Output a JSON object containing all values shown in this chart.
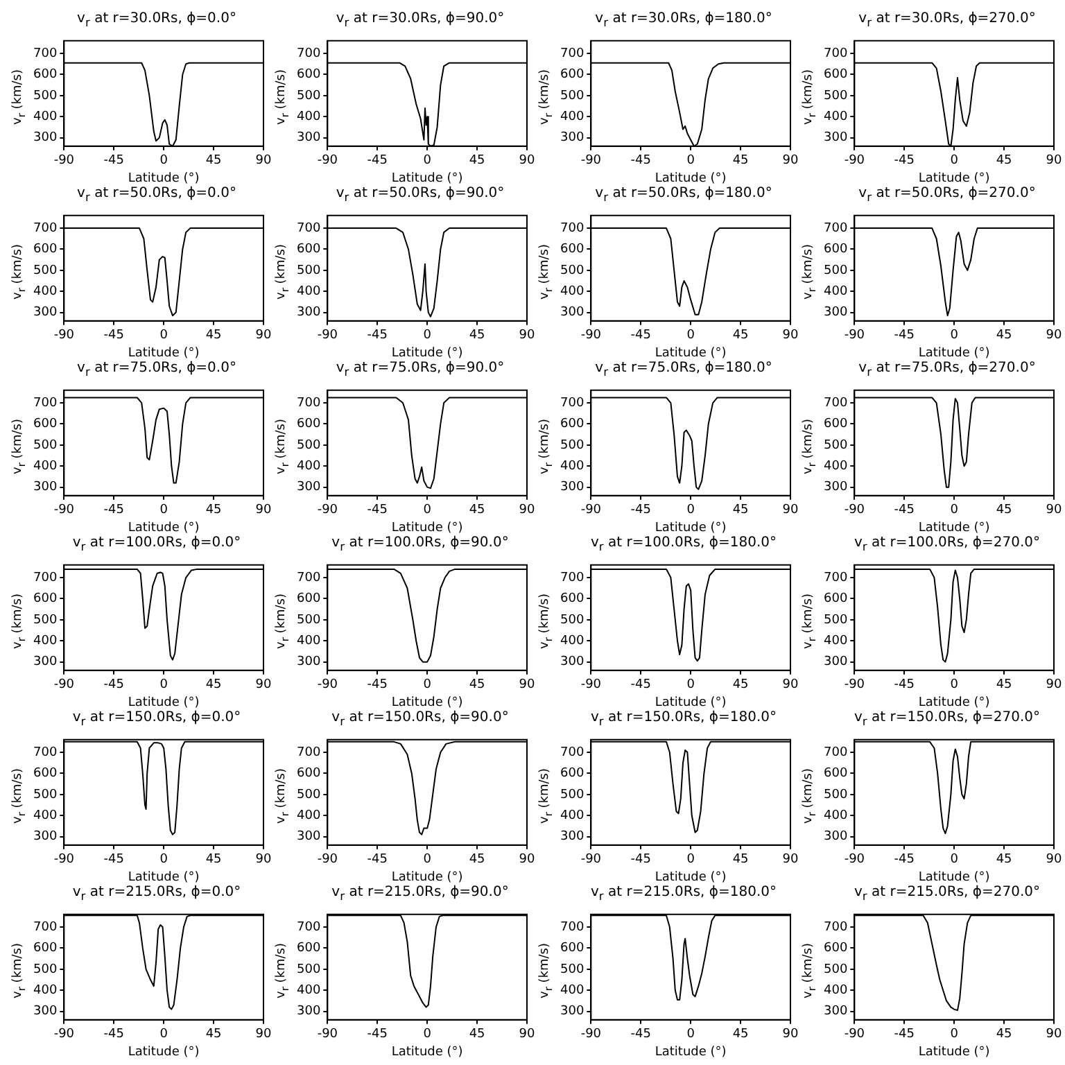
{
  "chart_data": [
    {
      "type": "line",
      "title": "v$_{r}$ at r=30.0Rs, ϕ=0.0°",
      "xlabel": "Latitude (°)",
      "ylabel": "v$_{r}$ (km/s)",
      "xlim": [
        -90,
        90
      ],
      "xticks": [
        -90,
        -45,
        0,
        45,
        90
      ],
      "ylim": [
        260,
        760
      ],
      "yticks": [
        300,
        400,
        500,
        600,
        700
      ],
      "x": [
        -90,
        -20,
        -17,
        -13,
        -9,
        -7,
        -4,
        -1,
        1,
        3,
        5,
        8,
        11,
        14,
        17,
        20,
        23,
        90
      ],
      "series": [
        {
          "color": "#000000",
          "values": [
            655,
            655,
            620,
            500,
            330,
            285,
            300,
            370,
            385,
            360,
            270,
            260,
            290,
            450,
            600,
            650,
            655,
            655
          ]
        }
      ]
    },
    {
      "type": "line",
      "title": "v$_{r}$ at r=30.0Rs, ϕ=90.0°",
      "xlabel": "Latitude (°)",
      "ylabel": "v$_{r}$ (km/s)",
      "xlim": [
        -90,
        90
      ],
      "xticks": [
        -90,
        -45,
        0,
        45,
        90
      ],
      "ylim": [
        260,
        760
      ],
      "yticks": [
        300,
        400,
        500,
        600,
        700
      ],
      "x": [
        -90,
        -25,
        -20,
        -15,
        -10,
        -6,
        -3,
        -2,
        -1,
        0,
        1,
        3,
        6,
        9,
        12,
        15,
        20,
        90
      ],
      "series": [
        {
          "color": "#000000",
          "values": [
            655,
            655,
            640,
            580,
            460,
            390,
            290,
            440,
            360,
            400,
            270,
            260,
            265,
            350,
            550,
            640,
            655,
            655
          ]
        }
      ]
    },
    {
      "type": "line",
      "title": "v$_{r}$ at r=30.0Rs, ϕ=180.0°",
      "xlabel": "Latitude (°)",
      "ylabel": "v$_{r}$ (km/s)",
      "xlim": [
        -90,
        90
      ],
      "xticks": [
        -90,
        -45,
        0,
        45,
        90
      ],
      "ylim": [
        260,
        760
      ],
      "yticks": [
        300,
        400,
        500,
        600,
        700
      ],
      "x": [
        -90,
        -20,
        -17,
        -14,
        -10,
        -7,
        -5,
        -3,
        0,
        3,
        6,
        10,
        13,
        16,
        20,
        25,
        30,
        90
      ],
      "series": [
        {
          "color": "#000000",
          "values": [
            655,
            655,
            620,
            520,
            420,
            340,
            355,
            320,
            290,
            260,
            270,
            340,
            480,
            580,
            630,
            650,
            655,
            655
          ]
        }
      ]
    },
    {
      "type": "line",
      "title": "v$_{r}$ at r=30.0Rs, ϕ=270.0°",
      "xlabel": "Latitude (°)",
      "ylabel": "v$_{r}$ (km/s)",
      "xlim": [
        -90,
        90
      ],
      "xticks": [
        -90,
        -45,
        0,
        45,
        90
      ],
      "ylim": [
        260,
        760
      ],
      "yticks": [
        300,
        400,
        500,
        600,
        700
      ],
      "x": [
        -90,
        -20,
        -16,
        -12,
        -8,
        -5,
        -3,
        -1,
        1,
        3,
        5,
        8,
        11,
        14,
        17,
        20,
        23,
        90
      ],
      "series": [
        {
          "color": "#000000",
          "values": [
            655,
            655,
            630,
            520,
            380,
            270,
            260,
            340,
            480,
            585,
            480,
            380,
            355,
            420,
            560,
            640,
            655,
            655
          ]
        }
      ]
    },
    {
      "type": "line",
      "title": "v$_{r}$ at r=50.0Rs, ϕ=0.0°",
      "xlabel": "Latitude (°)",
      "ylabel": "v$_{r}$ (km/s)",
      "xlim": [
        -90,
        90
      ],
      "xticks": [
        -90,
        -45,
        0,
        45,
        90
      ],
      "ylim": [
        260,
        760
      ],
      "yticks": [
        300,
        400,
        500,
        600,
        700
      ],
      "x": [
        -90,
        -22,
        -18,
        -15,
        -12,
        -10,
        -7,
        -4,
        -1,
        1,
        3,
        5,
        8,
        11,
        14,
        17,
        20,
        24,
        90
      ],
      "series": [
        {
          "color": "#000000",
          "values": [
            700,
            700,
            650,
            500,
            360,
            350,
            420,
            550,
            565,
            560,
            450,
            330,
            285,
            300,
            450,
            600,
            680,
            700,
            700
          ]
        }
      ]
    },
    {
      "type": "line",
      "title": "v$_{r}$ at r=50.0Rs, ϕ=90.0°",
      "xlabel": "Latitude (°)",
      "ylabel": "v$_{r}$ (km/s)",
      "xlim": [
        -90,
        90
      ],
      "xticks": [
        -90,
        -45,
        0,
        45,
        90
      ],
      "ylim": [
        260,
        760
      ],
      "yticks": [
        300,
        400,
        500,
        600,
        700
      ],
      "x": [
        -90,
        -28,
        -22,
        -17,
        -13,
        -9,
        -6,
        -4,
        -2,
        -1,
        1,
        3,
        6,
        9,
        12,
        15,
        20,
        90
      ],
      "series": [
        {
          "color": "#000000",
          "values": [
            700,
            700,
            680,
            600,
            480,
            340,
            310,
            400,
            530,
            400,
            300,
            280,
            320,
            450,
            600,
            680,
            700,
            700
          ]
        }
      ]
    },
    {
      "type": "line",
      "title": "v$_{r}$ at r=50.0Rs, ϕ=180.0°",
      "xlabel": "Latitude (°)",
      "ylabel": "v$_{r}$ (km/s)",
      "xlim": [
        -90,
        90
      ],
      "xticks": [
        -90,
        -45,
        0,
        45,
        90
      ],
      "ylim": [
        260,
        760
      ],
      "yticks": [
        300,
        400,
        500,
        600,
        700
      ],
      "x": [
        -90,
        -22,
        -18,
        -15,
        -12,
        -10,
        -8,
        -6,
        -3,
        0,
        4,
        7,
        10,
        14,
        18,
        22,
        26,
        90
      ],
      "series": [
        {
          "color": "#000000",
          "values": [
            700,
            700,
            650,
            500,
            350,
            330,
            420,
            450,
            420,
            360,
            290,
            290,
            350,
            480,
            600,
            680,
            700,
            700
          ]
        }
      ]
    },
    {
      "type": "line",
      "title": "v$_{r}$ at r=50.0Rs, ϕ=270.0°",
      "xlabel": "Latitude (°)",
      "ylabel": "v$_{r}$ (km/s)",
      "xlim": [
        -90,
        90
      ],
      "xticks": [
        -90,
        -45,
        0,
        45,
        90
      ],
      "ylim": [
        260,
        760
      ],
      "yticks": [
        300,
        400,
        500,
        600,
        700
      ],
      "x": [
        -90,
        -20,
        -16,
        -12,
        -8,
        -6,
        -4,
        -1,
        2,
        4,
        6,
        9,
        12,
        15,
        18,
        21,
        90
      ],
      "series": [
        {
          "color": "#000000",
          "values": [
            700,
            700,
            650,
            520,
            350,
            285,
            320,
            500,
            660,
            680,
            640,
            530,
            500,
            550,
            650,
            700,
            700
          ]
        }
      ]
    },
    {
      "type": "line",
      "title": "v$_{r}$ at r=75.0Rs, ϕ=0.0°",
      "xlabel": "Latitude (°)",
      "ylabel": "v$_{r}$ (km/s)",
      "xlim": [
        -90,
        90
      ],
      "xticks": [
        -90,
        -45,
        0,
        45,
        90
      ],
      "ylim": [
        260,
        760
      ],
      "yticks": [
        300,
        400,
        500,
        600,
        700
      ],
      "x": [
        -90,
        -24,
        -20,
        -17,
        -15,
        -13,
        -10,
        -7,
        -4,
        0,
        3,
        5,
        7,
        9,
        11,
        14,
        17,
        20,
        24,
        90
      ],
      "series": [
        {
          "color": "#000000",
          "values": [
            725,
            725,
            700,
            580,
            440,
            430,
            520,
            620,
            670,
            675,
            660,
            550,
            400,
            320,
            320,
            420,
            600,
            700,
            725,
            725
          ]
        }
      ]
    },
    {
      "type": "line",
      "title": "v$_{r}$ at r=75.0Rs, ϕ=90.0°",
      "xlabel": "Latitude (°)",
      "ylabel": "v$_{r}$ (km/s)",
      "xlim": [
        -90,
        90
      ],
      "xticks": [
        -90,
        -45,
        0,
        45,
        90
      ],
      "ylim": [
        260,
        760
      ],
      "yticks": [
        300,
        400,
        500,
        600,
        700
      ],
      "x": [
        -90,
        -28,
        -22,
        -17,
        -14,
        -11,
        -9,
        -7,
        -5,
        -3,
        0,
        3,
        6,
        9,
        12,
        15,
        20,
        90
      ],
      "series": [
        {
          "color": "#000000",
          "values": [
            725,
            725,
            700,
            620,
            450,
            340,
            320,
            350,
            395,
            330,
            300,
            295,
            340,
            470,
            600,
            700,
            725,
            725
          ]
        }
      ]
    },
    {
      "type": "line",
      "title": "v$_{r}$ at r=75.0Rs, ϕ=180.0°",
      "xlabel": "Latitude (°)",
      "ylabel": "v$_{r}$ (km/s)",
      "xlim": [
        -90,
        90
      ],
      "xticks": [
        -90,
        -45,
        0,
        45,
        90
      ],
      "ylim": [
        260,
        760
      ],
      "yticks": [
        300,
        400,
        500,
        600,
        700
      ],
      "x": [
        -90,
        -22,
        -18,
        -15,
        -12,
        -10,
        -8,
        -6,
        -4,
        -1,
        1,
        3,
        5,
        7,
        10,
        13,
        16,
        20,
        24,
        90
      ],
      "series": [
        {
          "color": "#000000",
          "values": [
            725,
            725,
            700,
            550,
            350,
            320,
            400,
            560,
            570,
            545,
            520,
            400,
            300,
            290,
            330,
            450,
            600,
            700,
            725,
            725
          ]
        }
      ]
    },
    {
      "type": "line",
      "title": "v$_{r}$ at r=75.0Rs, ϕ=270.0°",
      "xlabel": "Latitude (°)",
      "ylabel": "v$_{r}$ (km/s)",
      "xlim": [
        -90,
        90
      ],
      "xticks": [
        -90,
        -45,
        0,
        45,
        90
      ],
      "ylim": [
        260,
        760
      ],
      "yticks": [
        300,
        400,
        500,
        600,
        700
      ],
      "x": [
        -90,
        -20,
        -16,
        -12,
        -9,
        -7,
        -5,
        -3,
        -1,
        1,
        3,
        5,
        7,
        9,
        11,
        13,
        16,
        19,
        90
      ],
      "series": [
        {
          "color": "#000000",
          "values": [
            725,
            725,
            700,
            550,
            380,
            300,
            300,
            420,
            620,
            720,
            700,
            580,
            450,
            400,
            420,
            550,
            700,
            725,
            725
          ]
        }
      ]
    },
    {
      "type": "line",
      "title": "v$_{r}$ at r=100.0Rs, ϕ=0.0°",
      "xlabel": "Latitude (°)",
      "ylabel": "v$_{r}$ (km/s)",
      "xlim": [
        -90,
        90
      ],
      "xticks": [
        -90,
        -45,
        0,
        45,
        90
      ],
      "ylim": [
        260,
        760
      ],
      "yticks": [
        300,
        400,
        500,
        600,
        700
      ],
      "x": [
        -90,
        -24,
        -21,
        -19,
        -17,
        -15,
        -13,
        -10,
        -6,
        -3,
        -1,
        1,
        3,
        6,
        8,
        10,
        13,
        16,
        20,
        25,
        30,
        90
      ],
      "series": [
        {
          "color": "#000000",
          "values": [
            740,
            740,
            720,
            600,
            460,
            470,
            550,
            660,
            720,
            725,
            720,
            660,
            500,
            330,
            310,
            340,
            480,
            620,
            700,
            735,
            740,
            740
          ]
        }
      ]
    },
    {
      "type": "line",
      "title": "v$_{r}$ at r=100.0Rs, ϕ=90.0°",
      "xlabel": "Latitude (°)",
      "ylabel": "v$_{r}$ (km/s)",
      "xlim": [
        -90,
        90
      ],
      "xticks": [
        -90,
        -45,
        0,
        45,
        90
      ],
      "ylim": [
        260,
        760
      ],
      "yticks": [
        300,
        400,
        500,
        600,
        700
      ],
      "x": [
        -90,
        -30,
        -24,
        -18,
        -13,
        -10,
        -7,
        -4,
        0,
        3,
        6,
        9,
        12,
        16,
        20,
        25,
        90
      ],
      "series": [
        {
          "color": "#000000",
          "values": [
            740,
            740,
            720,
            650,
            500,
            400,
            320,
            300,
            300,
            330,
            420,
            550,
            650,
            700,
            730,
            740,
            740
          ]
        }
      ]
    },
    {
      "type": "line",
      "title": "v$_{r}$ at r=100.0Rs, ϕ=180.0°",
      "xlabel": "Latitude (°)",
      "ylabel": "v$_{r}$ (km/s)",
      "xlim": [
        -90,
        90
      ],
      "xticks": [
        -90,
        -45,
        0,
        45,
        90
      ],
      "ylim": [
        260,
        760
      ],
      "yticks": [
        300,
        400,
        500,
        600,
        700
      ],
      "x": [
        -90,
        -22,
        -18,
        -15,
        -12,
        -10,
        -8,
        -6,
        -4,
        -2,
        0,
        2,
        4,
        6,
        8,
        10,
        13,
        17,
        22,
        90
      ],
      "series": [
        {
          "color": "#000000",
          "values": [
            740,
            740,
            700,
            550,
            400,
            335,
            380,
            550,
            660,
            670,
            640,
            450,
            320,
            305,
            320,
            450,
            620,
            710,
            740,
            740
          ]
        }
      ]
    },
    {
      "type": "line",
      "title": "v$_{r}$ at r=100.0Rs, ϕ=270.0°",
      "xlabel": "Latitude (°)",
      "ylabel": "v$_{r}$ (km/s)",
      "xlim": [
        -90,
        90
      ],
      "xticks": [
        -90,
        -45,
        0,
        45,
        90
      ],
      "ylim": [
        260,
        760
      ],
      "yticks": [
        300,
        400,
        500,
        600,
        700
      ],
      "x": [
        -90,
        -22,
        -18,
        -15,
        -12,
        -10,
        -8,
        -6,
        -3,
        -1,
        1,
        3,
        5,
        7,
        9,
        11,
        13,
        15,
        18,
        90
      ],
      "series": [
        {
          "color": "#000000",
          "values": [
            740,
            740,
            700,
            560,
            380,
            310,
            300,
            340,
            500,
            680,
            735,
            700,
            600,
            470,
            440,
            500,
            620,
            720,
            740,
            740
          ]
        }
      ]
    },
    {
      "type": "line",
      "title": "v$_{r}$ at r=150.0Rs, ϕ=0.0°",
      "xlabel": "Latitude (°)",
      "ylabel": "v$_{r}$ (km/s)",
      "xlim": [
        -90,
        90
      ],
      "xticks": [
        -90,
        -45,
        0,
        45,
        90
      ],
      "ylim": [
        260,
        760
      ],
      "yticks": [
        300,
        400,
        500,
        600,
        700
      ],
      "x": [
        -90,
        -24,
        -21,
        -19,
        -17,
        -16,
        -15,
        -13,
        -9,
        -5,
        -2,
        0,
        2,
        4,
        6,
        8,
        10,
        12,
        14,
        16,
        19,
        90
      ],
      "series": [
        {
          "color": "#000000",
          "values": [
            750,
            750,
            720,
            600,
            450,
            430,
            600,
            720,
            745,
            745,
            740,
            720,
            620,
            450,
            330,
            310,
            320,
            450,
            620,
            720,
            750,
            750
          ]
        }
      ]
    },
    {
      "type": "line",
      "title": "v$_{r}$ at r=150.0Rs, ϕ=90.0°",
      "xlabel": "Latitude (°)",
      "ylabel": "v$_{r}$ (km/s)",
      "xlim": [
        -90,
        90
      ],
      "xticks": [
        -90,
        -45,
        0,
        45,
        90
      ],
      "ylim": [
        260,
        760
      ],
      "yticks": [
        300,
        400,
        500,
        600,
        700
      ],
      "x": [
        -90,
        -30,
        -24,
        -18,
        -14,
        -11,
        -9,
        -7,
        -5,
        -3,
        0,
        2,
        5,
        8,
        12,
        17,
        25,
        90
      ],
      "series": [
        {
          "color": "#000000",
          "values": [
            750,
            750,
            740,
            690,
            600,
            480,
            380,
            320,
            310,
            340,
            340,
            380,
            500,
            620,
            700,
            740,
            750,
            750
          ]
        }
      ]
    },
    {
      "type": "line",
      "title": "v$_{r}$ at r=150.0Rs, ϕ=180.0°",
      "xlabel": "Latitude (°)",
      "ylabel": "v$_{r}$ (km/s)",
      "xlim": [
        -90,
        90
      ],
      "xticks": [
        -90,
        -45,
        0,
        45,
        90
      ],
      "ylim": [
        260,
        760
      ],
      "yticks": [
        300,
        400,
        500,
        600,
        700
      ],
      "x": [
        -90,
        -22,
        -19,
        -16,
        -13,
        -11,
        -9,
        -7,
        -5,
        -3,
        -1,
        1,
        4,
        6,
        9,
        12,
        15,
        18,
        90
      ],
      "series": [
        {
          "color": "#000000",
          "values": [
            750,
            750,
            700,
            550,
            420,
            410,
            480,
            650,
            710,
            700,
            550,
            400,
            320,
            330,
            420,
            600,
            720,
            750,
            750
          ]
        }
      ]
    },
    {
      "type": "line",
      "title": "v$_{r}$ at r=150.0Rs, ϕ=270.0°",
      "xlabel": "Latitude (°)",
      "ylabel": "v$_{r}$ (km/s)",
      "xlim": [
        -90,
        90
      ],
      "xticks": [
        -90,
        -45,
        0,
        45,
        90
      ],
      "ylim": [
        260,
        760
      ],
      "yticks": [
        300,
        400,
        500,
        600,
        700
      ],
      "x": [
        -90,
        -22,
        -18,
        -15,
        -12,
        -10,
        -8,
        -6,
        -3,
        -1,
        1,
        3,
        5,
        7,
        9,
        11,
        13,
        15,
        90
      ],
      "series": [
        {
          "color": "#000000",
          "values": [
            750,
            750,
            720,
            600,
            430,
            340,
            315,
            350,
            500,
            660,
            715,
            680,
            580,
            500,
            480,
            550,
            680,
            750,
            750
          ]
        }
      ]
    },
    {
      "type": "line",
      "title": "v$_{r}$ at r=215.0Rs, ϕ=0.0°",
      "xlabel": "Latitude (°)",
      "ylabel": "v$_{r}$ (km/s)",
      "xlim": [
        -90,
        90
      ],
      "xticks": [
        -90,
        -45,
        0,
        45,
        90
      ],
      "ylim": [
        260,
        760
      ],
      "yticks": [
        300,
        400,
        500,
        600,
        700
      ],
      "x": [
        -90,
        -24,
        -22,
        -19,
        -16,
        -12,
        -9,
        -7,
        -5,
        -3,
        -1,
        1,
        3,
        5,
        7,
        9,
        12,
        15,
        18,
        21,
        24,
        90
      ],
      "series": [
        {
          "color": "#000000",
          "values": [
            755,
            755,
            720,
            600,
            500,
            450,
            420,
            530,
            690,
            710,
            700,
            560,
            400,
            320,
            310,
            330,
            450,
            600,
            700,
            750,
            755,
            755
          ]
        }
      ]
    },
    {
      "type": "line",
      "title": "v$_{r}$ at r=215.0Rs, ϕ=90.0°",
      "xlabel": "Latitude (°)",
      "ylabel": "v$_{r}$ (km/s)",
      "xlim": [
        -90,
        90
      ],
      "xticks": [
        -90,
        -45,
        0,
        45,
        90
      ],
      "ylim": [
        260,
        760
      ],
      "yticks": [
        300,
        400,
        500,
        600,
        700
      ],
      "x": [
        -90,
        -24,
        -21,
        -18,
        -15,
        -12,
        -8,
        -4,
        -1,
        1,
        3,
        5,
        8,
        11,
        14,
        90
      ],
      "series": [
        {
          "color": "#000000",
          "values": [
            755,
            755,
            720,
            630,
            470,
            420,
            380,
            340,
            320,
            330,
            420,
            560,
            700,
            750,
            755,
            755
          ]
        }
      ]
    },
    {
      "type": "line",
      "title": "v$_{r}$ at r=215.0Rs, ϕ=180.0°",
      "xlabel": "Latitude (°)",
      "ylabel": "v$_{r}$ (km/s)",
      "xlim": [
        -90,
        90
      ],
      "xticks": [
        -90,
        -45,
        0,
        45,
        90
      ],
      "ylim": [
        260,
        760
      ],
      "yticks": [
        300,
        400,
        500,
        600,
        700
      ],
      "x": [
        -90,
        -22,
        -19,
        -16,
        -14,
        -12,
        -10,
        -8,
        -6,
        -5,
        -3,
        -1,
        2,
        4,
        7,
        10,
        13,
        16,
        19,
        22,
        90
      ],
      "series": [
        {
          "color": "#000000",
          "values": [
            755,
            755,
            700,
            550,
            400,
            355,
            355,
            450,
            620,
            645,
            550,
            470,
            380,
            370,
            420,
            480,
            560,
            650,
            730,
            755,
            755
          ]
        }
      ]
    },
    {
      "type": "line",
      "title": "v$_{r}$ at r=215.0Rs, ϕ=270.0°",
      "xlabel": "Latitude (°)",
      "ylabel": "v$_{r}$ (km/s)",
      "xlim": [
        -90,
        90
      ],
      "xticks": [
        -90,
        -45,
        0,
        45,
        90
      ],
      "ylim": [
        260,
        760
      ],
      "yticks": [
        300,
        400,
        500,
        600,
        700
      ],
      "x": [
        -90,
        -28,
        -24,
        -20,
        -16,
        -13,
        -10,
        -7,
        -3,
        0,
        3,
        5,
        7,
        9,
        12,
        15,
        90
      ],
      "series": [
        {
          "color": "#000000",
          "values": [
            755,
            755,
            720,
            620,
            520,
            450,
            400,
            350,
            320,
            310,
            305,
            360,
            480,
            620,
            720,
            755,
            755
          ]
        }
      ]
    }
  ]
}
